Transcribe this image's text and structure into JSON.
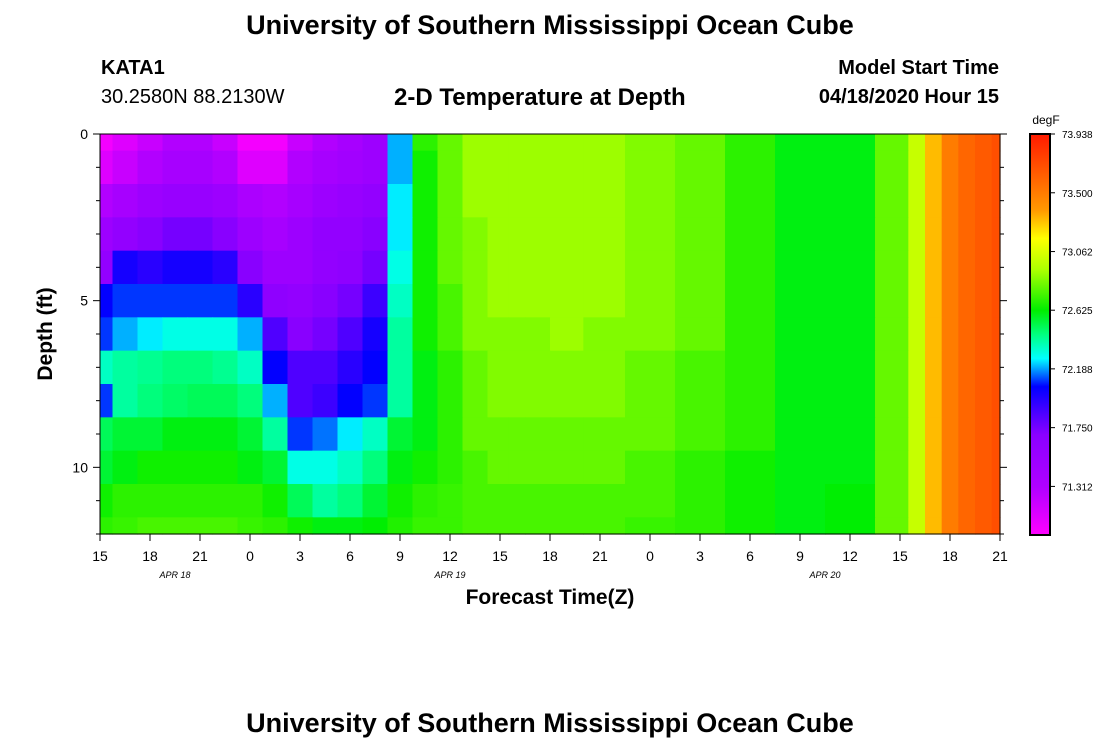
{
  "header": {
    "title": "University of Southern Mississippi Ocean Cube",
    "station_id": "KATA1",
    "coordinates": "30.2580N 88.2130W",
    "plot_title": "2-D Temperature at Depth",
    "model_start_label": "Model Start Time",
    "model_start_value": "04/18/2020 Hour 15"
  },
  "footer": {
    "title": "University of Southern Mississippi Ocean Cube"
  },
  "chart_data": {
    "type": "heatmap",
    "title": "2-D Temperature at Depth",
    "xlabel": "Forecast Time(Z)",
    "ylabel": "Depth (ft)",
    "x_ticks": [
      "15",
      "18",
      "21",
      "0",
      "3",
      "6",
      "9",
      "12",
      "15",
      "18",
      "21",
      "0",
      "3",
      "6",
      "9",
      "12",
      "15",
      "18",
      "21"
    ],
    "date_labels": [
      "APR 18",
      "APR 19",
      "APR 20"
    ],
    "y_ticks": [
      "0",
      "5",
      "10"
    ],
    "ylim": [
      0,
      12
    ],
    "x_range_hours": [
      0,
      54
    ],
    "colorbar": {
      "unit": "degF",
      "ticks": [
        "73.938",
        "73.500",
        "73.062",
        "72.625",
        "72.188",
        "71.750",
        "71.312"
      ],
      "min": 70.95,
      "max": 73.938
    },
    "depths_ft": [
      0,
      1,
      2,
      3,
      4,
      5,
      6,
      7,
      8,
      9,
      10,
      11,
      12
    ],
    "grid_note": "rows = depth levels (ft, top to bottom); columns = forecast hours from 04/18 15Z; values in degF",
    "hours": [
      0,
      1.5,
      3,
      4.5,
      6,
      7.5,
      9,
      10.5,
      12,
      13.5,
      15,
      16.5,
      18,
      19.5,
      21,
      22.5,
      24,
      25,
      26,
      28,
      30,
      33,
      36,
      39,
      42,
      45,
      48,
      49,
      50,
      51,
      52,
      53,
      54
    ],
    "values": [
      [
        71.0,
        71.1,
        71.2,
        71.3,
        71.3,
        71.2,
        71.0,
        71.0,
        71.2,
        71.3,
        71.4,
        71.5,
        72.2,
        72.7,
        72.8,
        72.9,
        72.9,
        72.9,
        72.9,
        72.9,
        72.9,
        72.85,
        72.8,
        72.7,
        72.6,
        72.6,
        72.8,
        73.0,
        73.3,
        73.5,
        73.6,
        73.65,
        73.7
      ],
      [
        71.1,
        71.2,
        71.3,
        71.4,
        71.4,
        71.3,
        71.1,
        71.1,
        71.3,
        71.4,
        71.45,
        71.5,
        72.2,
        72.65,
        72.8,
        72.9,
        72.9,
        72.9,
        72.9,
        72.9,
        72.9,
        72.85,
        72.8,
        72.7,
        72.6,
        72.6,
        72.8,
        73.0,
        73.3,
        73.5,
        73.6,
        73.65,
        73.7
      ],
      [
        71.3,
        71.4,
        71.5,
        71.55,
        71.55,
        71.5,
        71.35,
        71.3,
        71.4,
        71.5,
        71.55,
        71.6,
        72.25,
        72.65,
        72.8,
        72.9,
        72.9,
        72.9,
        72.9,
        72.9,
        72.9,
        72.85,
        72.8,
        72.7,
        72.6,
        72.6,
        72.8,
        73.0,
        73.3,
        73.5,
        73.6,
        73.65,
        73.7
      ],
      [
        71.5,
        71.6,
        71.7,
        71.75,
        71.75,
        71.7,
        71.5,
        71.4,
        71.5,
        71.6,
        71.6,
        71.7,
        72.25,
        72.65,
        72.8,
        72.85,
        72.9,
        72.9,
        72.9,
        72.9,
        72.9,
        72.85,
        72.8,
        72.7,
        72.6,
        72.6,
        72.8,
        73.0,
        73.3,
        73.5,
        73.6,
        73.65,
        73.7
      ],
      [
        71.6,
        72.0,
        71.95,
        72.0,
        72.0,
        71.95,
        71.7,
        71.5,
        71.5,
        71.6,
        71.65,
        71.75,
        72.3,
        72.65,
        72.8,
        72.85,
        72.9,
        72.9,
        72.9,
        72.9,
        72.9,
        72.85,
        72.8,
        72.7,
        72.6,
        72.6,
        72.8,
        73.0,
        73.3,
        73.5,
        73.6,
        73.65,
        73.7
      ],
      [
        72.05,
        72.1,
        72.1,
        72.1,
        72.1,
        72.1,
        71.95,
        71.65,
        71.6,
        71.7,
        71.75,
        71.9,
        72.35,
        72.65,
        72.75,
        72.85,
        72.9,
        72.9,
        72.9,
        72.9,
        72.9,
        72.85,
        72.8,
        72.7,
        72.6,
        72.6,
        72.8,
        73.0,
        73.3,
        73.5,
        73.6,
        73.65,
        73.7
      ],
      [
        72.1,
        72.2,
        72.25,
        72.3,
        72.3,
        72.3,
        72.2,
        71.85,
        71.7,
        71.75,
        71.85,
        72.0,
        72.4,
        72.65,
        72.75,
        72.85,
        72.85,
        72.85,
        72.85,
        72.9,
        72.85,
        72.85,
        72.8,
        72.7,
        72.6,
        72.6,
        72.8,
        73.0,
        73.3,
        73.5,
        73.6,
        73.65,
        73.7
      ],
      [
        72.35,
        72.4,
        72.42,
        72.45,
        72.45,
        72.42,
        72.35,
        72.05,
        71.85,
        71.85,
        71.95,
        72.05,
        72.4,
        72.6,
        72.7,
        72.8,
        72.85,
        72.85,
        72.85,
        72.85,
        72.85,
        72.8,
        72.75,
        72.7,
        72.6,
        72.6,
        72.8,
        73.0,
        73.3,
        73.5,
        73.6,
        73.65,
        73.7
      ],
      [
        72.1,
        72.4,
        72.45,
        72.48,
        72.5,
        72.5,
        72.45,
        72.2,
        71.85,
        71.9,
        72.05,
        72.1,
        72.4,
        72.6,
        72.7,
        72.8,
        72.85,
        72.85,
        72.85,
        72.85,
        72.85,
        72.8,
        72.75,
        72.7,
        72.6,
        72.6,
        72.8,
        73.0,
        73.3,
        73.5,
        73.6,
        73.65,
        73.7
      ],
      [
        72.5,
        72.55,
        72.55,
        72.6,
        72.6,
        72.6,
        72.55,
        72.4,
        72.1,
        72.15,
        72.25,
        72.35,
        72.55,
        72.6,
        72.7,
        72.8,
        72.8,
        72.8,
        72.8,
        72.8,
        72.8,
        72.8,
        72.75,
        72.7,
        72.6,
        72.6,
        72.8,
        73.0,
        73.3,
        73.5,
        73.6,
        73.65,
        73.7
      ],
      [
        72.55,
        72.6,
        72.65,
        72.65,
        72.65,
        72.65,
        72.6,
        72.55,
        72.3,
        72.3,
        72.35,
        72.45,
        72.6,
        72.65,
        72.7,
        72.75,
        72.8,
        72.8,
        72.8,
        72.8,
        72.8,
        72.75,
        72.7,
        72.65,
        72.6,
        72.6,
        72.8,
        73.0,
        73.3,
        73.5,
        73.6,
        73.65,
        73.7
      ],
      [
        72.65,
        72.7,
        72.7,
        72.7,
        72.7,
        72.7,
        72.7,
        72.65,
        72.5,
        72.4,
        72.45,
        72.55,
        72.65,
        72.7,
        72.72,
        72.75,
        72.75,
        72.75,
        72.75,
        72.75,
        72.75,
        72.75,
        72.7,
        72.65,
        72.6,
        72.62,
        72.8,
        73.0,
        73.3,
        73.5,
        73.6,
        73.65,
        73.7
      ],
      [
        72.7,
        72.72,
        72.75,
        72.75,
        72.75,
        72.75,
        72.72,
        72.7,
        72.65,
        72.6,
        72.6,
        72.62,
        72.68,
        72.72,
        72.72,
        72.75,
        72.75,
        72.75,
        72.75,
        72.75,
        72.75,
        72.72,
        72.7,
        72.65,
        72.6,
        72.62,
        72.8,
        73.0,
        73.3,
        73.5,
        73.6,
        73.65,
        73.7
      ]
    ]
  }
}
